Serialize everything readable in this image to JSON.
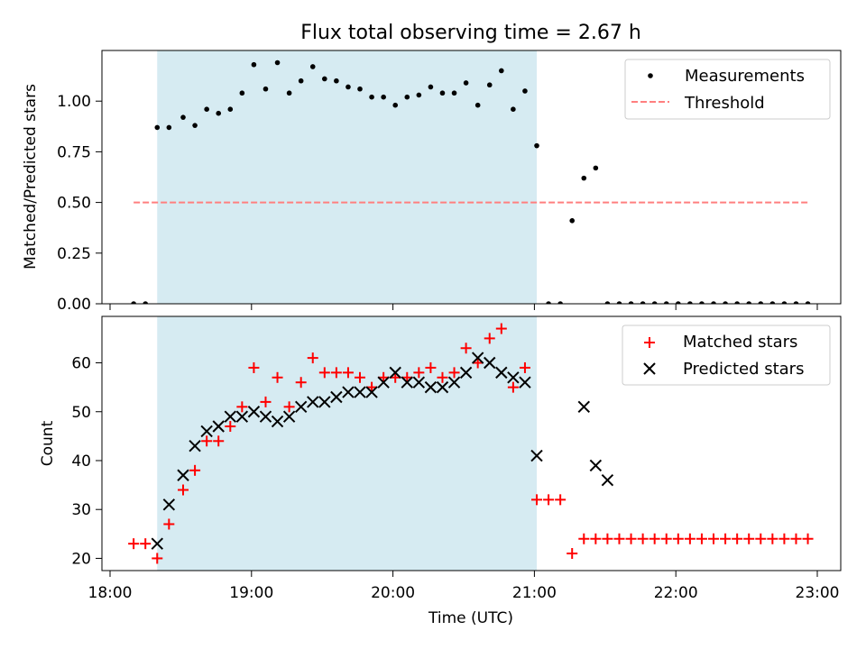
{
  "chart_data": [
    {
      "type": "scatter",
      "title": "Flux total observing time = 2.67 h",
      "xlabel": "",
      "ylabel": "Matched/Predicted stars",
      "ylim": [
        0,
        1.25
      ],
      "y_ticks": [
        "0.00",
        "0.25",
        "0.50",
        "0.75",
        "1.00"
      ],
      "x_tick_labels_shown": false,
      "shaded_interval": {
        "start": "18:20",
        "end": "21:01",
        "color": "#add8e6"
      },
      "legend": {
        "position": "top-right"
      },
      "series": [
        {
          "name": "Measurements",
          "marker": "dot",
          "color": "#000000",
          "x": [
            "18:10",
            "18:15",
            "18:20",
            "18:25",
            "18:31",
            "18:36",
            "18:41",
            "18:46",
            "18:51",
            "18:56",
            "19:01",
            "19:06",
            "19:11",
            "19:16",
            "19:21",
            "19:26",
            "19:31",
            "19:36",
            "19:41",
            "19:46",
            "19:51",
            "19:56",
            "20:01",
            "20:06",
            "20:11",
            "20:16",
            "20:21",
            "20:26",
            "20:31",
            "20:36",
            "20:41",
            "20:46",
            "20:51",
            "20:56",
            "21:01",
            "21:06",
            "21:11",
            "21:16",
            "21:21",
            "21:26",
            "21:31",
            "21:36",
            "21:41",
            "21:46",
            "21:51",
            "21:56",
            "22:01",
            "22:06",
            "22:11",
            "22:16",
            "22:21",
            "22:26",
            "22:31",
            "22:36",
            "22:41",
            "22:46",
            "22:51",
            "22:56"
          ],
          "y": [
            0.0,
            0.0,
            0.87,
            0.87,
            0.92,
            0.88,
            0.96,
            0.94,
            0.96,
            1.04,
            1.18,
            1.06,
            1.19,
            1.04,
            1.1,
            1.17,
            1.11,
            1.1,
            1.07,
            1.06,
            1.02,
            1.02,
            0.98,
            1.02,
            1.03,
            1.07,
            1.04,
            1.04,
            1.09,
            0.98,
            1.08,
            1.15,
            0.96,
            1.05,
            0.78,
            0.0,
            0.0,
            0.41,
            0.62,
            0.67,
            0.0,
            0.0,
            0.0,
            0.0,
            0.0,
            0.0,
            0.0,
            0.0,
            0.0,
            0.0,
            0.0,
            0.0,
            0.0,
            0.0,
            0.0,
            0.0,
            0.0,
            0.0
          ]
        },
        {
          "name": "Threshold",
          "marker": "dashed-line",
          "color": "#ff7f7f",
          "x": [
            "18:10",
            "22:56"
          ],
          "y": [
            0.5,
            0.5
          ]
        }
      ]
    },
    {
      "type": "scatter",
      "xlabel": "Time (UTC)",
      "ylabel": "Count",
      "ylim": [
        17.5,
        69.5
      ],
      "y_ticks": [
        "20",
        "30",
        "40",
        "50",
        "60"
      ],
      "x_ticks": [
        "18:00",
        "19:00",
        "20:00",
        "21:00",
        "22:00",
        "23:00"
      ],
      "shaded_interval": {
        "start": "18:20",
        "end": "21:01",
        "color": "#add8e6"
      },
      "legend": {
        "position": "top-right"
      },
      "series": [
        {
          "name": "Matched stars",
          "marker": "plus",
          "color": "#ff0000",
          "x": [
            "18:10",
            "18:15",
            "18:20",
            "18:25",
            "18:31",
            "18:36",
            "18:41",
            "18:46",
            "18:51",
            "18:56",
            "19:01",
            "19:06",
            "19:11",
            "19:16",
            "19:21",
            "19:26",
            "19:31",
            "19:36",
            "19:41",
            "19:46",
            "19:51",
            "19:56",
            "20:01",
            "20:06",
            "20:11",
            "20:16",
            "20:21",
            "20:26",
            "20:31",
            "20:36",
            "20:41",
            "20:46",
            "20:51",
            "20:56",
            "21:01",
            "21:06",
            "21:11",
            "21:16",
            "21:21",
            "21:26",
            "21:31",
            "21:36",
            "21:41",
            "21:46",
            "21:51",
            "21:56",
            "22:01",
            "22:06",
            "22:11",
            "22:16",
            "22:21",
            "22:26",
            "22:31",
            "22:36",
            "22:41",
            "22:46",
            "22:51",
            "22:56"
          ],
          "y": [
            23,
            23,
            20,
            27,
            34,
            38,
            44,
            44,
            47,
            51,
            59,
            52,
            57,
            51,
            56,
            61,
            58,
            58,
            58,
            57,
            55,
            57,
            57,
            57,
            58,
            59,
            57,
            58,
            63,
            60,
            65,
            67,
            55,
            59,
            32,
            32,
            32,
            21,
            24,
            24,
            24,
            24,
            24,
            24,
            24,
            24,
            24,
            24,
            24,
            24,
            24,
            24,
            24,
            24,
            24,
            24,
            24,
            24
          ]
        },
        {
          "name": "Predicted stars",
          "marker": "x",
          "color": "#000000",
          "x": [
            "18:20",
            "18:25",
            "18:31",
            "18:36",
            "18:41",
            "18:46",
            "18:51",
            "18:56",
            "19:01",
            "19:06",
            "19:11",
            "19:16",
            "19:21",
            "19:26",
            "19:31",
            "19:36",
            "19:41",
            "19:46",
            "19:51",
            "19:56",
            "20:01",
            "20:06",
            "20:11",
            "20:16",
            "20:21",
            "20:26",
            "20:31",
            "20:36",
            "20:41",
            "20:46",
            "20:51",
            "20:56",
            "21:01",
            "21:21",
            "21:26",
            "21:31"
          ],
          "y": [
            23,
            31,
            37,
            43,
            46,
            47,
            49,
            49,
            50,
            49,
            48,
            49,
            51,
            52,
            52,
            53,
            54,
            54,
            54,
            56,
            58,
            56,
            56,
            55,
            55,
            56,
            58,
            61,
            60,
            58,
            57,
            56,
            41,
            51,
            39,
            36
          ]
        }
      ]
    }
  ]
}
